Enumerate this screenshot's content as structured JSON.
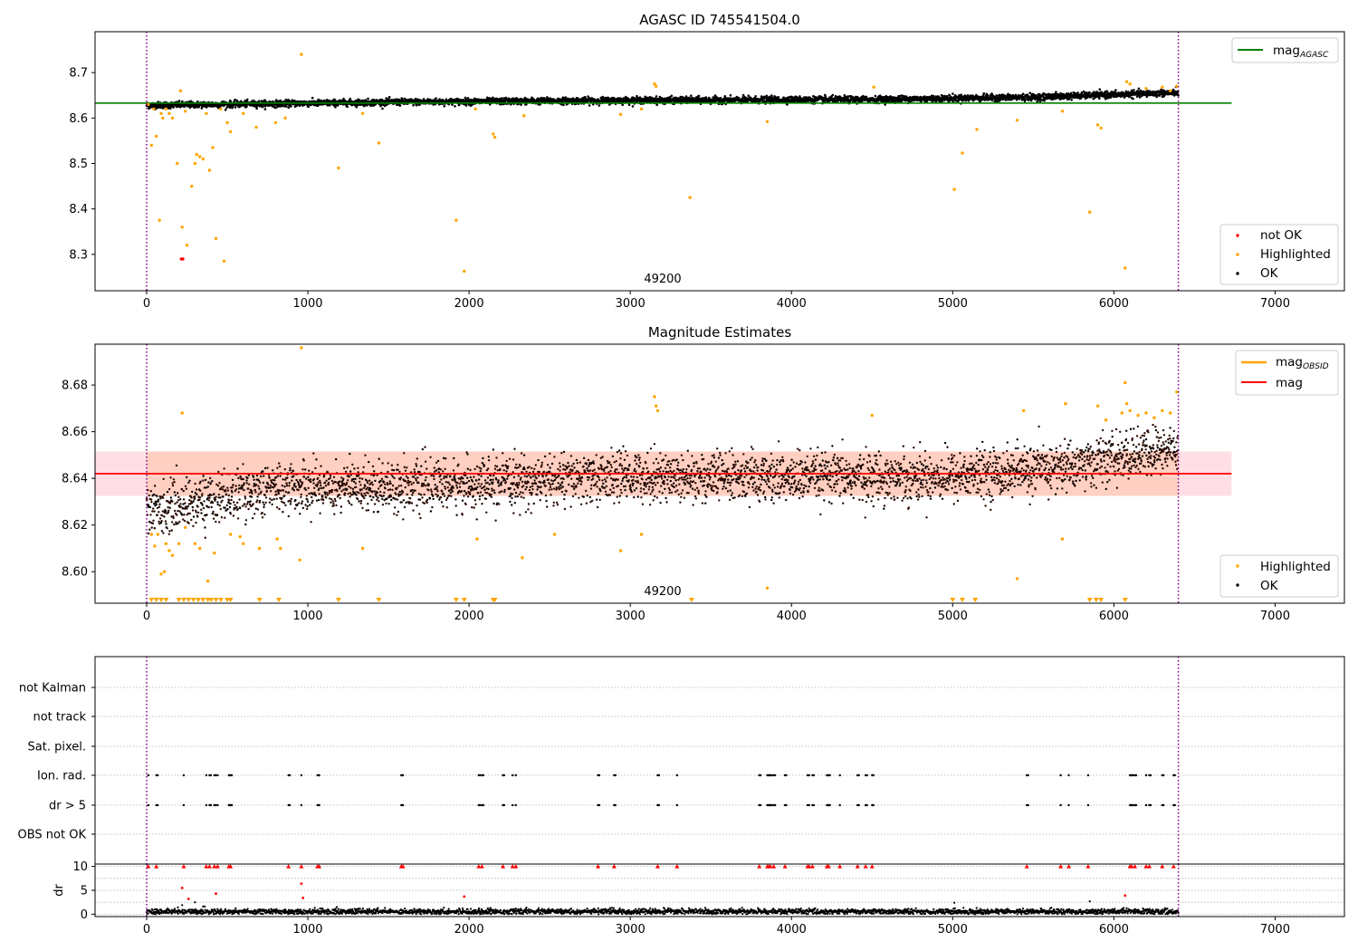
{
  "figure": {
    "width": 1500,
    "height": 1050
  },
  "colors": {
    "ok": "#000000",
    "highlighted": "#ffa500",
    "not_ok": "#ff0000",
    "agasc_line": "#008000",
    "mag_line": "#ff0000",
    "obsid_line": "#ffa500",
    "band_fill": "#ffc0cb",
    "band_inner": "#ffc4a8",
    "vline": "#800080",
    "grid": "#b0b0b0"
  },
  "chart_data": [
    {
      "id": "panel-agasc",
      "type": "scatter",
      "title": "AGASC ID 745541504.0",
      "center_label": "49200",
      "xlim": [
        -320,
        7430
      ],
      "ylim": [
        8.22,
        8.79
      ],
      "xticks": [
        0,
        1000,
        2000,
        3000,
        4000,
        5000,
        6000,
        7000
      ],
      "yticks": [
        8.3,
        8.4,
        8.5,
        8.6,
        8.7
      ],
      "ytick_labels": [
        "8.3",
        "8.4",
        "8.5",
        "8.6",
        "8.7"
      ],
      "vlines": [
        0,
        6400
      ],
      "hlines": [
        {
          "y": 8.633,
          "x": [
            -320,
            6730
          ],
          "series": "mag_agasc"
        }
      ],
      "legends": [
        {
          "loc": "upper right",
          "entries": [
            {
              "label": "mag",
              "sub": "AGASC",
              "kind": "line",
              "color": "#008000"
            }
          ]
        },
        {
          "loc": "lower right",
          "entries": [
            {
              "label": "not OK",
              "kind": "dot",
              "color": "#ff0000"
            },
            {
              "label": "Highlighted",
              "kind": "dot",
              "color": "#ffa500"
            },
            {
              "label": "OK",
              "kind": "dot",
              "color": "#000000"
            }
          ]
        }
      ],
      "sample_points": {
        "highlighted": [
          [
            10,
            8.63
          ],
          [
            30,
            8.54
          ],
          [
            45,
            8.62
          ],
          [
            60,
            8.56
          ],
          [
            80,
            8.375
          ],
          [
            90,
            8.61
          ],
          [
            100,
            8.6
          ],
          [
            120,
            8.62
          ],
          [
            140,
            8.61
          ],
          [
            160,
            8.6
          ],
          [
            190,
            8.5
          ],
          [
            210,
            8.66
          ],
          [
            220,
            8.36
          ],
          [
            240,
            8.615
          ],
          [
            250,
            8.32
          ],
          [
            280,
            8.45
          ],
          [
            300,
            8.5
          ],
          [
            310,
            8.52
          ],
          [
            330,
            8.515
          ],
          [
            350,
            8.51
          ],
          [
            370,
            8.61
          ],
          [
            390,
            8.485
          ],
          [
            410,
            8.535
          ],
          [
            430,
            8.335
          ],
          [
            460,
            8.62
          ],
          [
            480,
            8.285
          ],
          [
            500,
            8.59
          ],
          [
            520,
            8.57
          ],
          [
            600,
            8.61
          ],
          [
            680,
            8.58
          ],
          [
            800,
            8.59
          ],
          [
            860,
            8.6
          ],
          [
            960,
            8.74
          ],
          [
            1190,
            8.49
          ],
          [
            1340,
            8.61
          ],
          [
            1440,
            8.545
          ],
          [
            1920,
            8.375
          ],
          [
            1970,
            8.263
          ],
          [
            2040,
            8.62
          ],
          [
            2150,
            8.565
          ],
          [
            2160,
            8.558
          ],
          [
            2340,
            8.605
          ],
          [
            2940,
            8.608
          ],
          [
            3070,
            8.62
          ],
          [
            3150,
            8.675
          ],
          [
            3160,
            8.67
          ],
          [
            3370,
            8.425
          ],
          [
            3850,
            8.592
          ],
          [
            4510,
            8.668
          ],
          [
            5010,
            8.443
          ],
          [
            5060,
            8.523
          ],
          [
            5150,
            8.575
          ],
          [
            5400,
            8.595
          ],
          [
            5680,
            8.615
          ],
          [
            5850,
            8.393
          ],
          [
            5900,
            8.585
          ],
          [
            5920,
            8.578
          ],
          [
            6070,
            8.27
          ],
          [
            6080,
            8.68
          ],
          [
            6100,
            8.675
          ],
          [
            6200,
            8.665
          ],
          [
            6300,
            8.668
          ],
          [
            6350,
            8.66
          ],
          [
            6390,
            8.67
          ]
        ],
        "not_ok": [
          [
            215,
            8.29
          ],
          [
            225,
            8.29
          ]
        ]
      },
      "ok_band": {
        "base": [
          [
            0,
            8.628
          ],
          [
            1500,
            8.635
          ],
          [
            3000,
            8.639
          ],
          [
            4500,
            8.641
          ],
          [
            5500,
            8.646
          ],
          [
            6400,
            8.656
          ]
        ],
        "spread": 0.007
      }
    },
    {
      "id": "panel-mag",
      "type": "scatter",
      "title": "Magnitude Estimates",
      "center_label": "49200",
      "xlim": [
        -320,
        7430
      ],
      "ylim": [
        8.5865,
        8.6975
      ],
      "xticks": [
        0,
        1000,
        2000,
        3000,
        4000,
        5000,
        6000,
        7000
      ],
      "yticks": [
        8.6,
        8.62,
        8.64,
        8.66,
        8.68
      ],
      "ytick_labels": [
        "8.60",
        "8.62",
        "8.64",
        "8.66",
        "8.68"
      ],
      "vlines": [
        0,
        6400
      ],
      "hlines": [
        {
          "y": 8.642,
          "x": [
            -320,
            6730
          ],
          "series": "mag"
        }
      ],
      "band": {
        "y": [
          8.6325,
          8.6515
        ],
        "x": [
          -320,
          6730
        ]
      },
      "legends": [
        {
          "loc": "upper right",
          "entries": [
            {
              "label": "mag",
              "sub": "OBSID",
              "kind": "line",
              "color": "#ffa500"
            },
            {
              "label": "mag",
              "kind": "line",
              "color": "#ff0000"
            }
          ]
        },
        {
          "loc": "lower right",
          "entries": [
            {
              "label": "Highlighted",
              "kind": "dot",
              "color": "#ffa500"
            },
            {
              "label": "OK",
              "kind": "dot",
              "color": "#000000"
            }
          ]
        }
      ],
      "sample_points": {
        "highlighted": [
          [
            30,
            8.616
          ],
          [
            50,
            8.611
          ],
          [
            70,
            8.616
          ],
          [
            90,
            8.599
          ],
          [
            110,
            8.6
          ],
          [
            120,
            8.612
          ],
          [
            140,
            8.609
          ],
          [
            160,
            8.607
          ],
          [
            200,
            8.612
          ],
          [
            220,
            8.668
          ],
          [
            240,
            8.619
          ],
          [
            300,
            8.612
          ],
          [
            330,
            8.61
          ],
          [
            380,
            8.596
          ],
          [
            420,
            8.608
          ],
          [
            520,
            8.616
          ],
          [
            580,
            8.615
          ],
          [
            600,
            8.612
          ],
          [
            700,
            8.61
          ],
          [
            810,
            8.614
          ],
          [
            830,
            8.61
          ],
          [
            950,
            8.605
          ],
          [
            960,
            8.696
          ],
          [
            1340,
            8.61
          ],
          [
            2050,
            8.614
          ],
          [
            2330,
            8.606
          ],
          [
            2530,
            8.616
          ],
          [
            2940,
            8.609
          ],
          [
            3070,
            8.616
          ],
          [
            3150,
            8.675
          ],
          [
            3160,
            8.671
          ],
          [
            3170,
            8.669
          ],
          [
            3850,
            8.593
          ],
          [
            4500,
            8.667
          ],
          [
            5400,
            8.597
          ],
          [
            5440,
            8.669
          ],
          [
            5680,
            8.614
          ],
          [
            5700,
            8.672
          ],
          [
            5900,
            8.671
          ],
          [
            5950,
            8.665
          ],
          [
            6050,
            8.668
          ],
          [
            6070,
            8.681
          ],
          [
            6080,
            8.672
          ],
          [
            6100,
            8.669
          ],
          [
            6150,
            8.667
          ],
          [
            6200,
            8.668
          ],
          [
            6250,
            8.666
          ],
          [
            6300,
            8.669
          ],
          [
            6350,
            8.668
          ],
          [
            6390,
            8.677
          ]
        ],
        "highlighted_down": [
          30,
          60,
          90,
          120,
          200,
          230,
          260,
          290,
          320,
          350,
          380,
          400,
          430,
          460,
          500,
          520,
          700,
          820,
          1190,
          1440,
          1920,
          1970,
          2150,
          2160,
          3380,
          5000,
          5060,
          5140,
          5850,
          5890,
          5920,
          6070
        ]
      },
      "ok_band": {
        "base": [
          [
            0,
            8.626
          ],
          [
            800,
            8.636
          ],
          [
            2000,
            8.637
          ],
          [
            3000,
            8.641
          ],
          [
            4000,
            8.64
          ],
          [
            5000,
            8.641
          ],
          [
            5600,
            8.644
          ],
          [
            6400,
            8.653
          ]
        ],
        "spread": 0.008
      }
    },
    {
      "id": "panel-flags",
      "type": "scatter",
      "categories": [
        "OBS not OK",
        "dr > 5",
        "Ion. rad.",
        "Sat. pixel.",
        "not track",
        "not Kalman"
      ],
      "xlim": [
        -320,
        7430
      ],
      "xticks": [
        0,
        1000,
        2000,
        3000,
        4000,
        5000,
        6000,
        7000
      ],
      "vlines": [
        0,
        6400
      ],
      "flag_x": [
        10,
        60,
        230,
        370,
        390,
        420,
        440,
        510,
        520,
        880,
        960,
        1060,
        1070,
        1580,
        1590,
        2060,
        2080,
        2210,
        2270,
        2290,
        2800,
        2900,
        3170,
        3290,
        3800,
        3850,
        3860,
        3870,
        3890,
        3960,
        4100,
        4110,
        4130,
        4220,
        4230,
        4300,
        4410,
        4460,
        4500,
        5460,
        5670,
        5720,
        5840,
        6100,
        6110,
        6130,
        6200,
        6220,
        6300,
        6370
      ]
    },
    {
      "id": "panel-dr",
      "type": "scatter",
      "ylabel": "dr",
      "xlim": [
        -320,
        7430
      ],
      "ylim": [
        -0.5,
        10.5
      ],
      "yticks": [
        0,
        5,
        10
      ],
      "ytick_labels": [
        "0",
        "5",
        "10"
      ],
      "xticks": [
        0,
        1000,
        2000,
        3000,
        4000,
        5000,
        6000,
        7000
      ],
      "xtick_labels": [
        "0",
        "1000",
        "2000",
        "3000",
        "4000",
        "5000",
        "6000",
        "7000"
      ],
      "vlines": [
        0,
        6400
      ],
      "sample_points": {
        "red_high": [
          10,
          60,
          230,
          370,
          390,
          420,
          440,
          510,
          520,
          880,
          960,
          1060,
          1070,
          1580,
          1590,
          2060,
          2080,
          2210,
          2270,
          2290,
          2800,
          2900,
          3170,
          3290,
          3800,
          3850,
          3860,
          3870,
          3890,
          3960,
          4100,
          4110,
          4130,
          4220,
          4230,
          4300,
          4410,
          4460,
          4500,
          5460,
          5670,
          5720,
          5840,
          6100,
          6110,
          6130,
          6200,
          6220,
          6300,
          6370
        ],
        "red_mid": [
          [
            220,
            5.5
          ],
          [
            260,
            3.2
          ],
          [
            430,
            4.3
          ],
          [
            960,
            6.4
          ],
          [
            970,
            3.4
          ],
          [
            1970,
            3.7
          ],
          [
            6070,
            3.9
          ]
        ]
      }
    }
  ]
}
